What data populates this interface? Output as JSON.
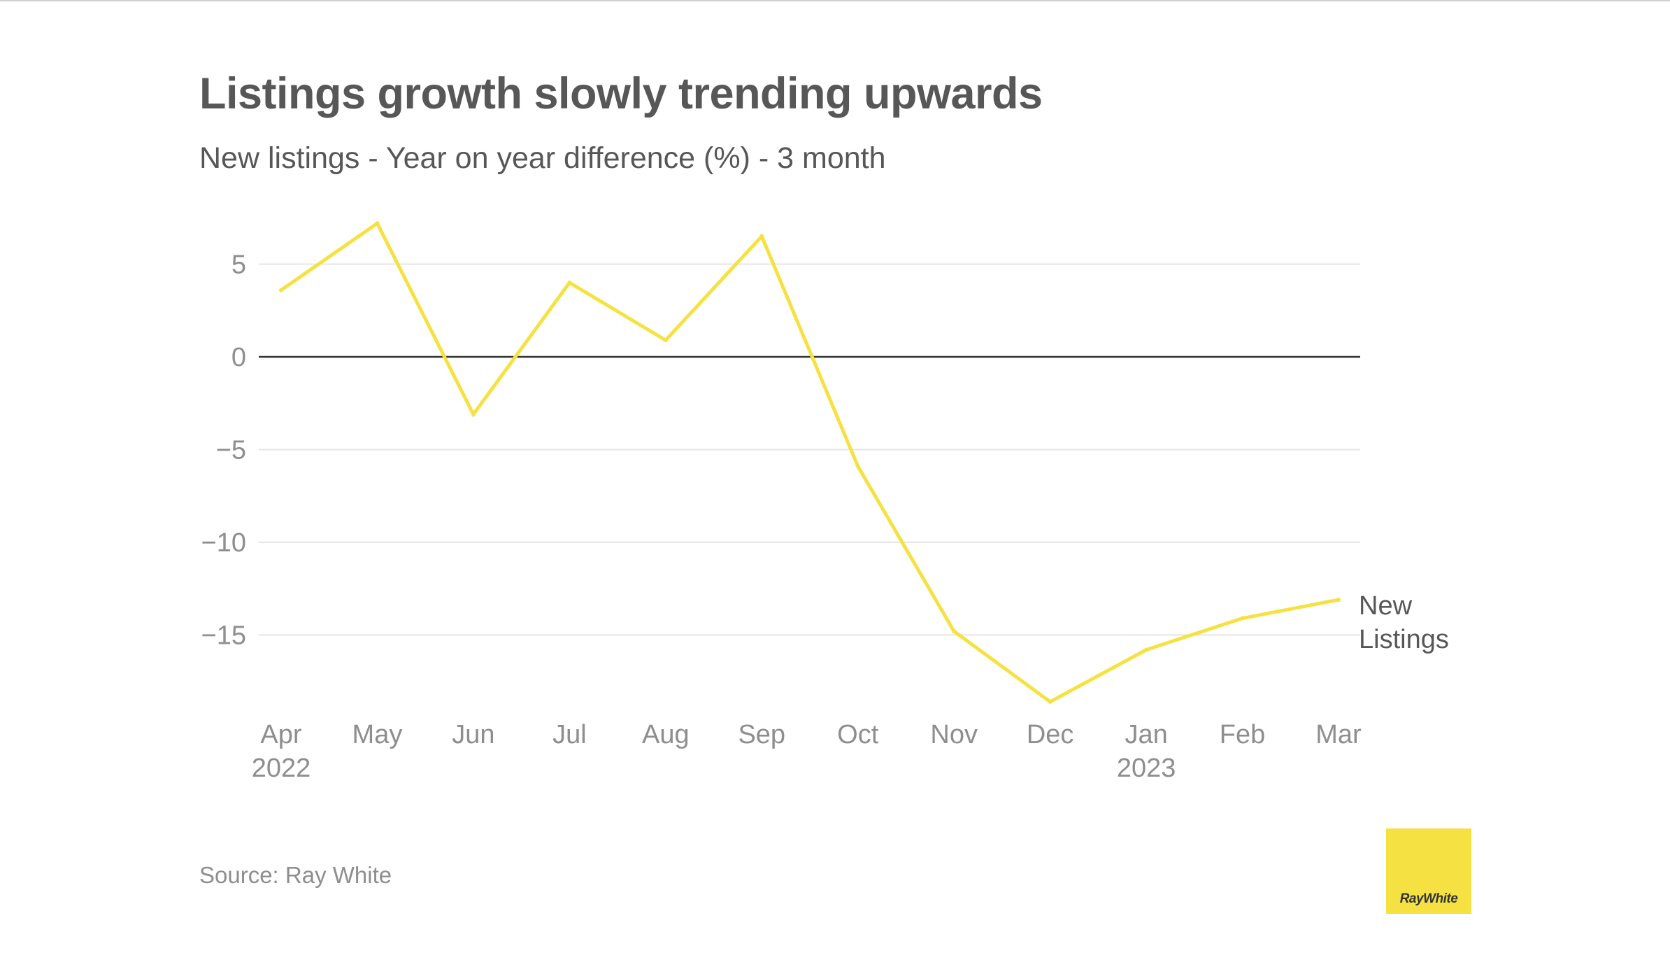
{
  "title": "Listings growth slowly trending upwards",
  "subtitle": "New listings - Year on year difference (%) - 3 month",
  "source": "Source: Ray White",
  "logo_text": "RayWhite",
  "colors": {
    "line": "#f5e242",
    "zero_line": "#333333",
    "grid": "#e6e6e6",
    "logo_bg": "#f5e242"
  },
  "chart_data": {
    "type": "line",
    "title": "Listings growth slowly trending upwards",
    "subtitle": "New listings - Year on year difference (%) - 3 month",
    "categories": [
      "Apr",
      "May",
      "Jun",
      "Jul",
      "Aug",
      "Sep",
      "Oct",
      "Nov",
      "Dec",
      "Jan",
      "Feb",
      "Mar"
    ],
    "category_sublabels": [
      "2022",
      "",
      "",
      "",
      "",
      "",
      "",
      "",
      "",
      "2023",
      "",
      ""
    ],
    "series": [
      {
        "name": "New Listings",
        "name_lines": [
          "New",
          "Listings"
        ],
        "values": [
          3.6,
          7.2,
          -3.1,
          4.0,
          0.9,
          6.5,
          -5.9,
          -14.8,
          -18.6,
          -15.8,
          -14.1,
          -13.1
        ]
      }
    ],
    "yticks": [
      5,
      0,
      -5,
      -10,
      -15
    ],
    "ytick_labels": [
      "5",
      "0",
      "−5",
      "−10",
      "−15"
    ],
    "ylim": [
      -19,
      8
    ],
    "grid": true,
    "zero_line": true,
    "legend": "direct-label-right",
    "xlabel": "",
    "ylabel": ""
  }
}
